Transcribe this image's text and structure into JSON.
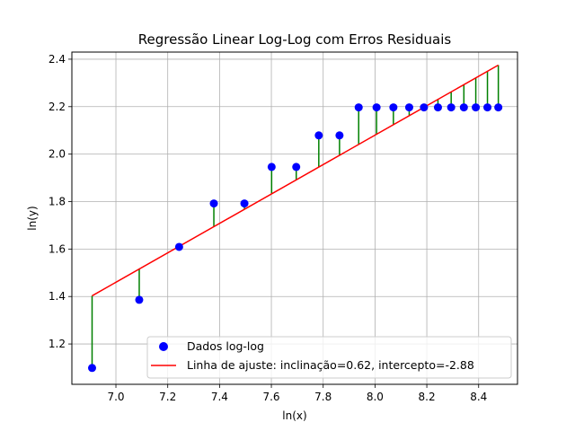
{
  "chart_data": {
    "type": "scatter",
    "title": "Regressão Linear Log-Log com Erros Residuais",
    "xlabel": "ln(x)",
    "ylabel": "ln(y)",
    "xlim": [
      6.83,
      8.55
    ],
    "ylim": [
      1.03,
      2.43
    ],
    "grid": true,
    "legend_position": "lower-right",
    "x_ticks": [
      "7.0",
      "7.2",
      "7.4",
      "7.6",
      "7.8",
      "8.0",
      "8.2",
      "8.4"
    ],
    "y_ticks": [
      "1.2",
      "1.4",
      "1.6",
      "1.8",
      "2.0",
      "2.2",
      "2.4"
    ],
    "series": [
      {
        "name": "Dados log-log",
        "kind": "scatter",
        "color": "#0000ff",
        "x": [
          6.908,
          7.09,
          7.244,
          7.378,
          7.496,
          7.601,
          7.696,
          7.783,
          7.863,
          7.937,
          8.006,
          8.071,
          8.132,
          8.189,
          8.243,
          8.294,
          8.343,
          8.389,
          8.434,
          8.476
        ],
        "y": [
          1.099,
          1.386,
          1.609,
          1.792,
          1.792,
          1.946,
          1.946,
          2.079,
          2.079,
          2.197,
          2.197,
          2.197,
          2.197,
          2.197,
          2.197,
          2.197,
          2.197,
          2.197,
          2.197,
          2.197
        ]
      },
      {
        "name": "Linha de ajuste: inclinação=0.62, intercepto=-2.88",
        "kind": "line",
        "color": "#ff0000",
        "slope": 0.62,
        "intercept": -2.88,
        "x_start": 6.908,
        "x_end": 8.476
      }
    ],
    "residual_color": "#008000"
  }
}
